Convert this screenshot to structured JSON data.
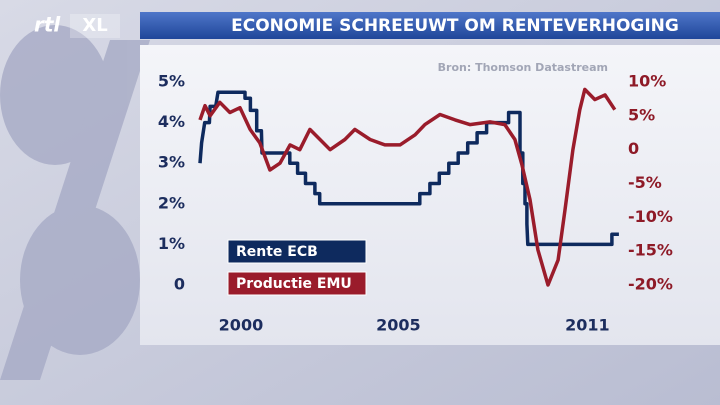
{
  "logo": {
    "brand": "rtl",
    "suffix": "XL"
  },
  "chart_data": {
    "type": "line",
    "title": "ECONOMIE SCHREEUWT OM RENTEVERHOGING",
    "source": "Bron: Thomson Datastream",
    "xlim": [
      1998.7,
      2012.1
    ],
    "xticks": [
      2000,
      2005,
      2011
    ],
    "ylim": [
      0,
      5
    ],
    "yticks": [
      0,
      {
        "value": 1,
        "label": "1%"
      },
      {
        "value": 2,
        "label": "2%"
      },
      {
        "value": 3,
        "label": "3%"
      },
      {
        "value": 4,
        "label": "4%"
      },
      {
        "value": 5,
        "label": "5%"
      }
    ],
    "y2lim": [
      -20,
      10
    ],
    "y2ticks": [
      {
        "value": -20,
        "label": "-20%"
      },
      {
        "value": -15,
        "label": "-15%"
      },
      {
        "value": -10,
        "label": "-10%"
      },
      {
        "value": -5,
        "label": "-5%"
      },
      0,
      {
        "value": 5,
        "label": "5%"
      },
      {
        "value": 10,
        "label": "10%"
      }
    ],
    "grid": false,
    "series": [
      {
        "name": "Rente ECB",
        "color": "#0e2a5e",
        "x": [
          1998.7,
          1998.75,
          1998.85,
          1999.0,
          1999.02,
          1999.2,
          1999.27,
          2000.13,
          2000.13,
          2000.3,
          2000.3,
          2000.5,
          2000.5,
          2000.65,
          2000.67,
          2001.55,
          2001.55,
          2001.8,
          2001.8,
          2002.05,
          2002.05,
          2002.35,
          2002.35,
          2002.5,
          2002.5,
          2005.68,
          2005.68,
          2006.0,
          2006.0,
          2006.3,
          2006.3,
          2006.6,
          2006.6,
          2006.9,
          2006.9,
          2007.2,
          2007.2,
          2007.5,
          2007.5,
          2007.8,
          2007.8,
          2008.5,
          2008.5,
          2008.86,
          2008.86,
          2008.95,
          2008.95,
          2009.02,
          2009.02,
          2009.08,
          2009.08,
          2009.11,
          2011.78,
          2011.78,
          2012.0
        ],
        "values": [
          3.0,
          3.5,
          4.0,
          4.0,
          4.4,
          4.4,
          4.75,
          4.75,
          4.6,
          4.6,
          4.3,
          4.3,
          3.8,
          3.8,
          3.25,
          3.25,
          3.0,
          3.0,
          2.75,
          2.75,
          2.5,
          2.5,
          2.25,
          2.25,
          2.0,
          2.0,
          2.25,
          2.25,
          2.5,
          2.5,
          2.75,
          2.75,
          3.0,
          3.0,
          3.25,
          3.25,
          3.5,
          3.5,
          3.75,
          3.75,
          4.0,
          4.0,
          4.25,
          4.25,
          3.25,
          3.25,
          2.5,
          2.5,
          2.0,
          2.0,
          1.5,
          1.0,
          1.0,
          1.25,
          1.25
        ]
      },
      {
        "name": "Productie EMU",
        "color": "#9a1c2b",
        "axis": "y2",
        "x": [
          1998.7,
          1998.86,
          1999.02,
          1999.33,
          1999.65,
          1999.97,
          2000.29,
          2000.6,
          2000.92,
          2001.24,
          2001.56,
          2001.87,
          2002.19,
          2002.51,
          2002.83,
          2003.3,
          2003.62,
          2004.1,
          2004.57,
          2005.05,
          2005.53,
          2005.84,
          2006.32,
          2006.8,
          2007.27,
          2007.91,
          2008.38,
          2008.7,
          2008.92,
          2009.18,
          2009.43,
          2009.75,
          2010.07,
          2010.29,
          2010.54,
          2010.76,
          2010.92,
          2011.24,
          2011.56,
          2011.87
        ],
        "values": [
          4.4,
          6.5,
          5.0,
          7.0,
          5.5,
          6.2,
          3.0,
          1.0,
          -3.0,
          -2.0,
          0.7,
          0.0,
          3.0,
          1.5,
          0.0,
          1.5,
          3.0,
          1.5,
          0.7,
          0.7,
          2.2,
          3.7,
          5.2,
          4.4,
          3.7,
          4.1,
          3.7,
          1.5,
          -2.2,
          -7.4,
          -14.8,
          -20.0,
          -16.3,
          -8.9,
          0.0,
          5.9,
          8.9,
          7.4,
          8.1,
          5.9
        ]
      }
    ]
  }
}
